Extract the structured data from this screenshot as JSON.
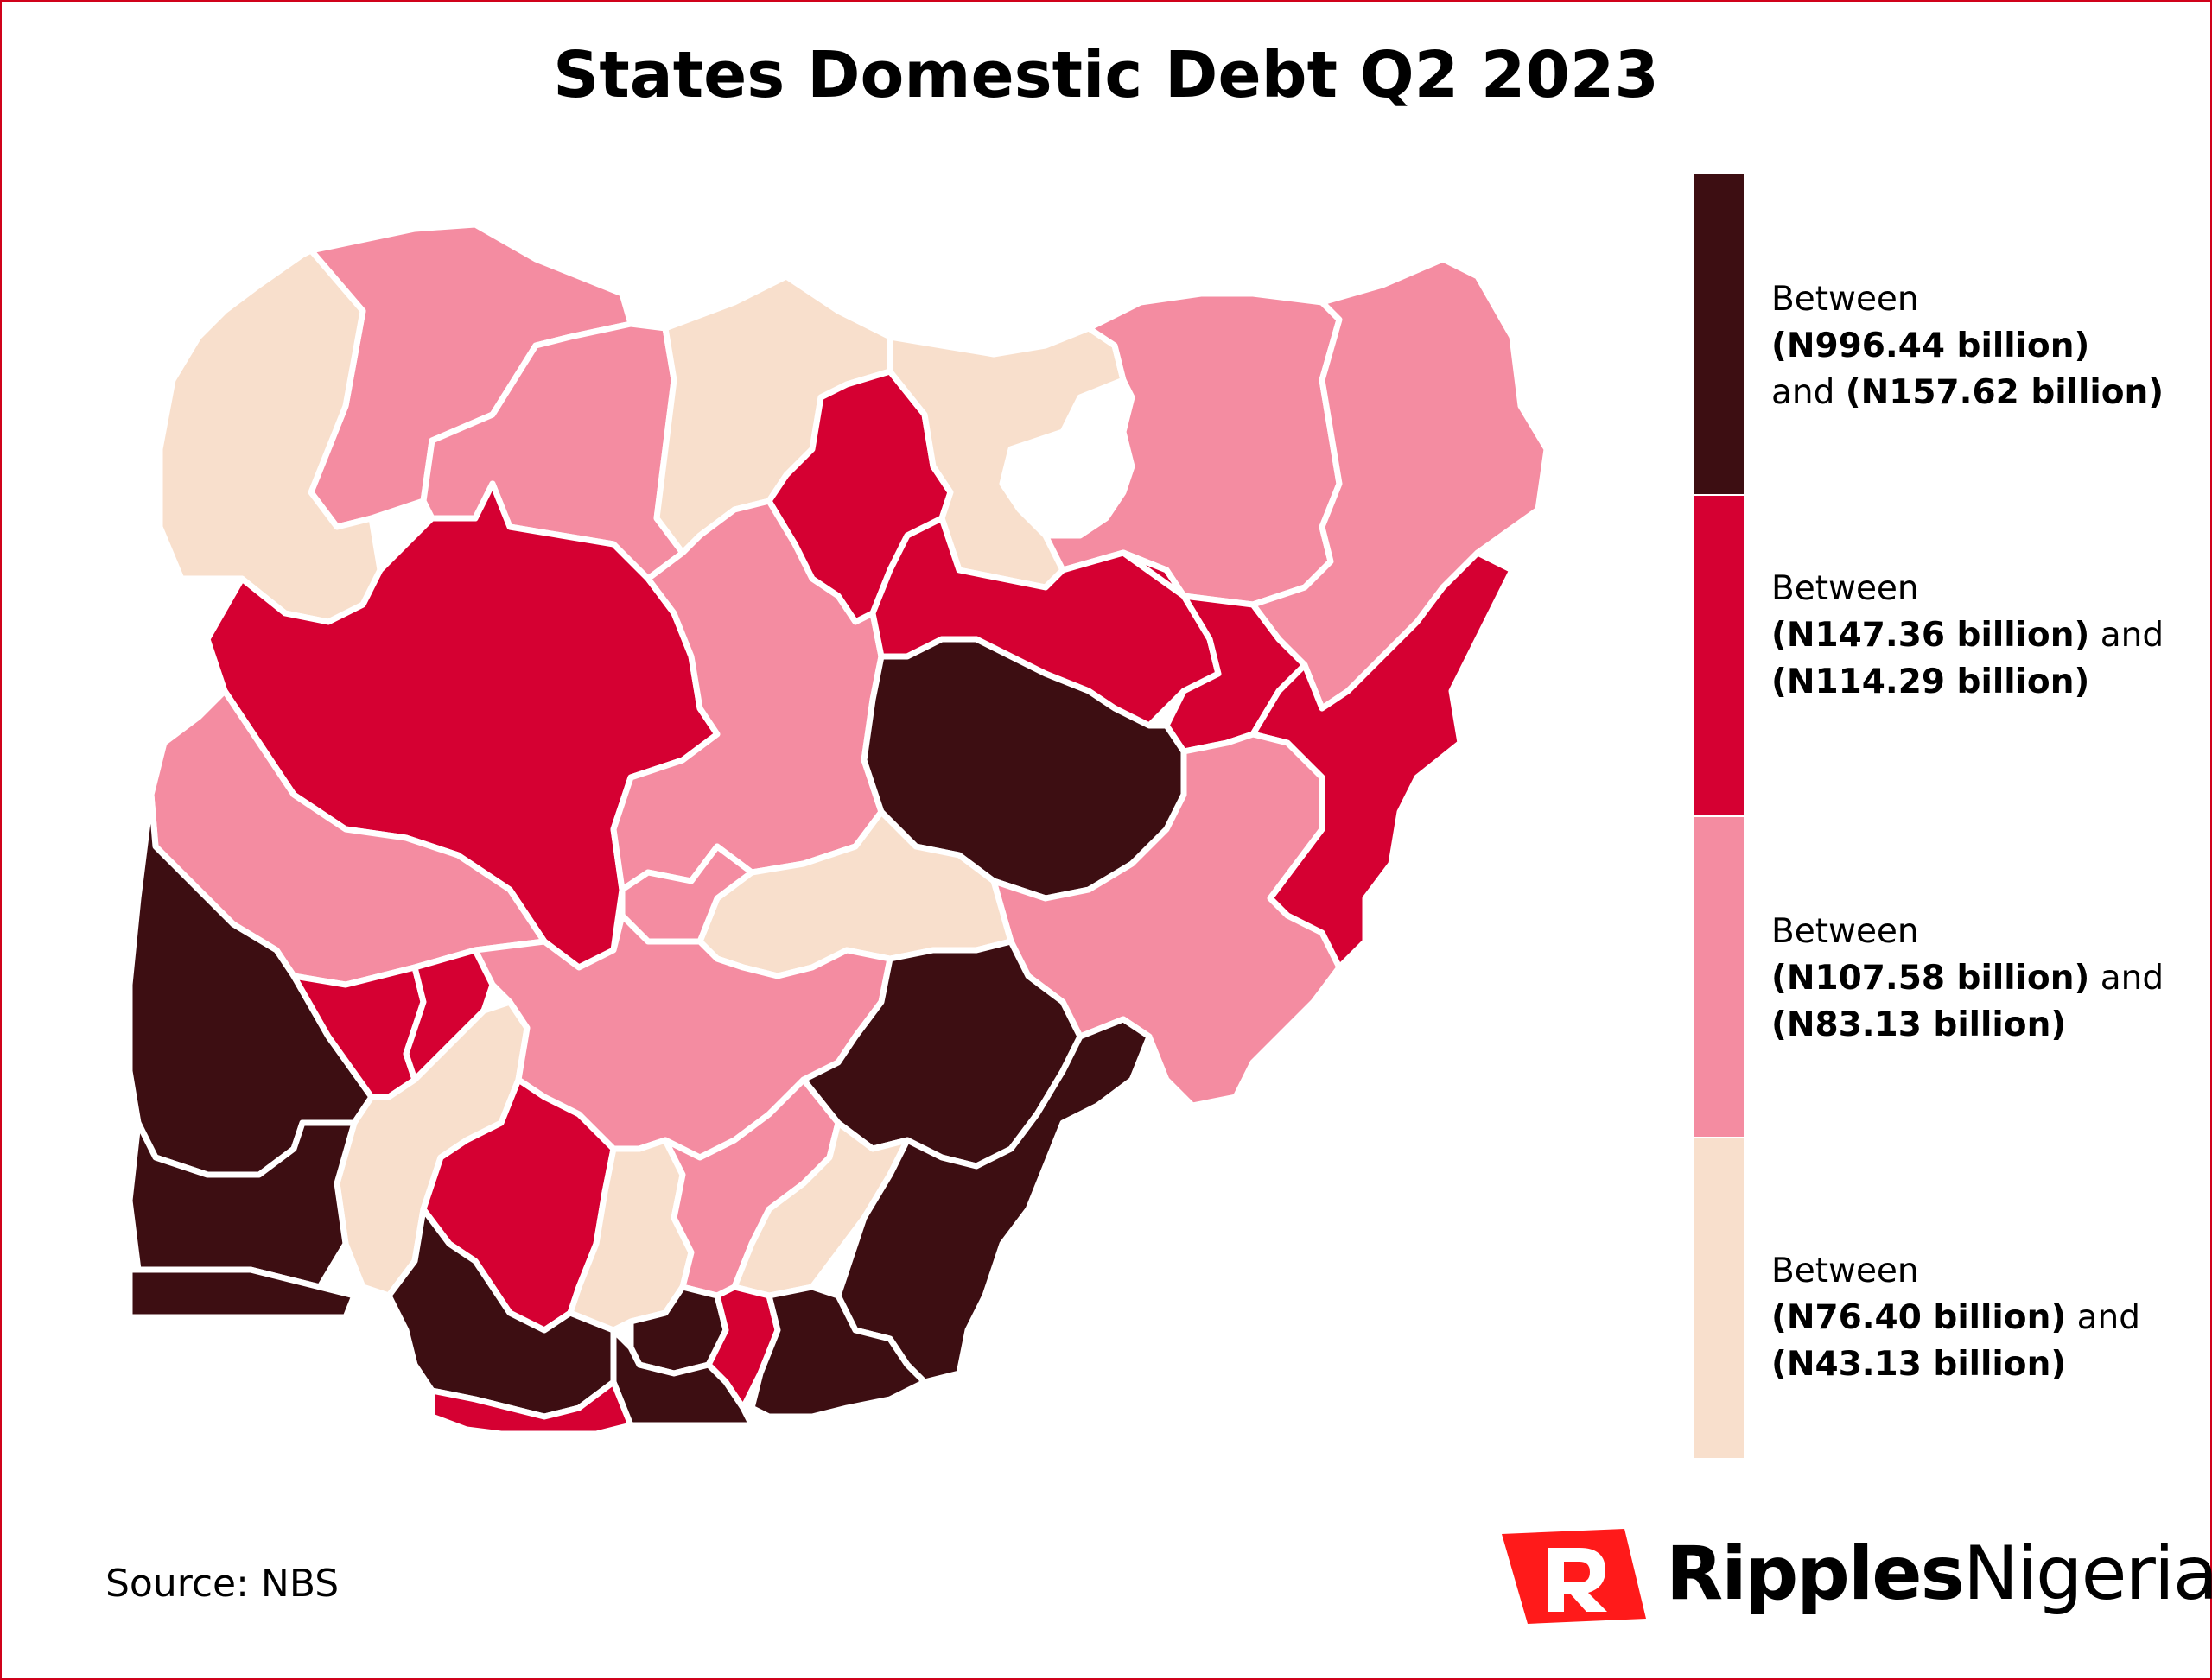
{
  "title": "States Domestic Debt Q2 2023",
  "source": "Source: NBS",
  "brand": {
    "part1": "Ripples",
    "part2": "Nigeria",
    "color": "#ff1a1a"
  },
  "colors": {
    "tier1": "#3d0e12",
    "tier2": "#d50032",
    "tier3": "#f48ca1",
    "tier4": "#f8dfcc",
    "border": "#ffffff",
    "frame": "#d0021b"
  },
  "legend": [
    {
      "prefix": "Between",
      "low": "(N996.44 billion)",
      "and": "and",
      "high": "(N157.62 billion)",
      "color": "#3d0e12"
    },
    {
      "prefix": "Between",
      "low": "(N147.36 billion)",
      "and": "and",
      "high": "(N114.29 billion)",
      "color": "#d50032"
    },
    {
      "prefix": "Between",
      "low": "(N107.58 billion)",
      "and": "and",
      "high": "(N83.13 billion)",
      "color": "#f48ca1"
    },
    {
      "prefix": "Between",
      "low": "(N76.40 billion)",
      "and": "and",
      "high": "(N43.13 billion)",
      "color": "#f8dfcc"
    }
  ],
  "map": {
    "region": "Nigeria",
    "states": [
      {
        "id": "sokoto",
        "tier": 3
      },
      {
        "id": "kebbi",
        "tier": 4
      },
      {
        "id": "zamfara",
        "tier": 3
      },
      {
        "id": "katsina",
        "tier": 4
      },
      {
        "id": "kano",
        "tier": 2
      },
      {
        "id": "jigawa",
        "tier": 4
      },
      {
        "id": "yobe",
        "tier": 3
      },
      {
        "id": "borno",
        "tier": 3
      },
      {
        "id": "niger",
        "tier": 2
      },
      {
        "id": "kaduna",
        "tier": 3
      },
      {
        "id": "bauchi",
        "tier": 2
      },
      {
        "id": "gombe",
        "tier": 2
      },
      {
        "id": "adamawa",
        "tier": 2
      },
      {
        "id": "kwara",
        "tier": 3
      },
      {
        "id": "plateau",
        "tier": 1
      },
      {
        "id": "taraba",
        "tier": 3
      },
      {
        "id": "oyo",
        "tier": 1
      },
      {
        "id": "nasarawa",
        "tier": 4
      },
      {
        "id": "fct",
        "tier": 3
      },
      {
        "id": "kogi",
        "tier": 3
      },
      {
        "id": "benue",
        "tier": 1
      },
      {
        "id": "osun",
        "tier": 2
      },
      {
        "id": "ekiti",
        "tier": 2
      },
      {
        "id": "ondo",
        "tier": 4
      },
      {
        "id": "ogun",
        "tier": 1
      },
      {
        "id": "lagos",
        "tier": 1
      },
      {
        "id": "edo",
        "tier": 2
      },
      {
        "id": "delta",
        "tier": 1
      },
      {
        "id": "anambra",
        "tier": 4
      },
      {
        "id": "enugu",
        "tier": 3
      },
      {
        "id": "ebonyi",
        "tier": 4
      },
      {
        "id": "cross-river",
        "tier": 1
      },
      {
        "id": "imo",
        "tier": 1
      },
      {
        "id": "abia",
        "tier": 2
      },
      {
        "id": "rivers",
        "tier": 1
      },
      {
        "id": "akwa-ibom",
        "tier": 1
      },
      {
        "id": "bayelsa",
        "tier": 2
      }
    ]
  }
}
